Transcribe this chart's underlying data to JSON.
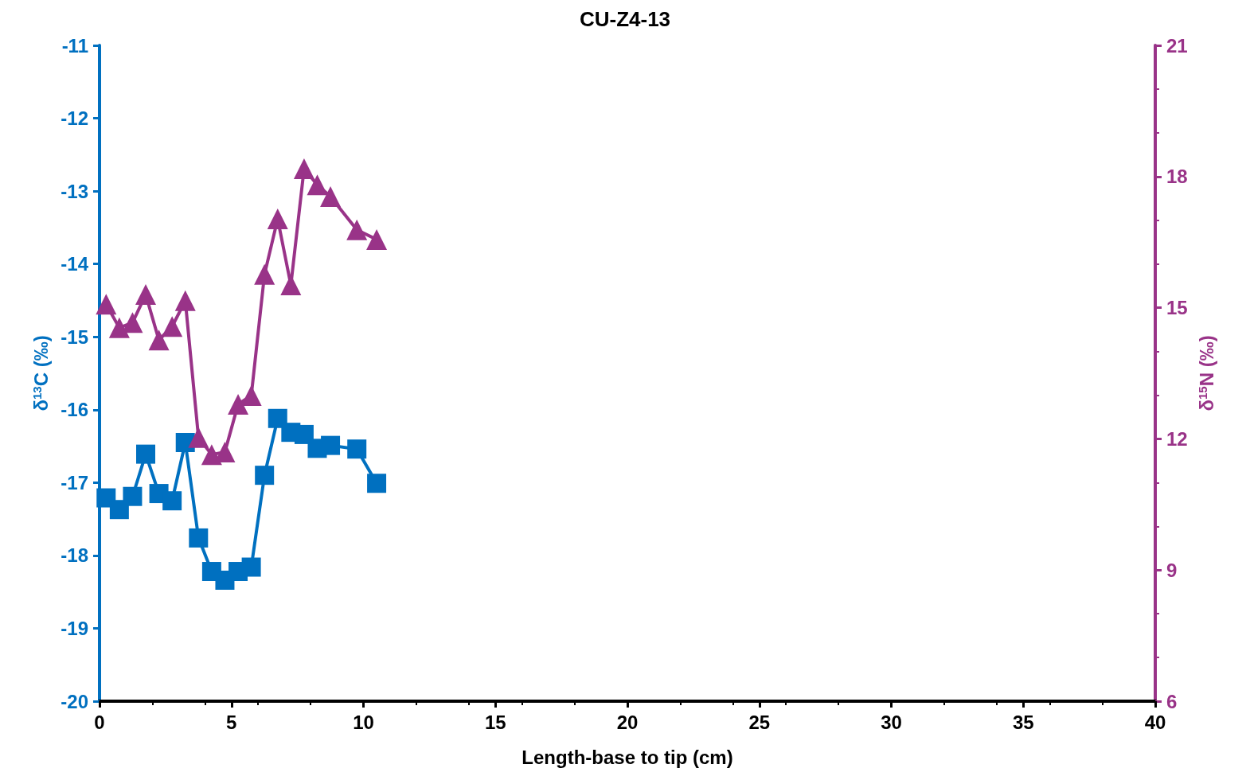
{
  "chart_data": {
    "type": "line",
    "title": "CU-Z4-13",
    "xlabel": "Length-base to tip (cm)",
    "ylabel": "δ$^{13}$C (‰)",
    "y2label": "δ$^{15}$N (‰)",
    "x": [
      0.25,
      0.75,
      1.25,
      1.75,
      2.25,
      2.75,
      3.25,
      3.75,
      4.25,
      4.75,
      5.25,
      5.75,
      6.25,
      6.75,
      7.25,
      7.75,
      8.25,
      8.75,
      9.75,
      10.5
    ],
    "series": [
      {
        "color": "#0070c0",
        "marker": "square",
        "values": [
          -17.21,
          -17.37,
          -17.19,
          -16.61,
          -17.15,
          -17.25,
          -16.45,
          -17.76,
          -18.22,
          -18.34,
          -18.22,
          -18.16,
          -16.9,
          -16.12,
          -16.31,
          -16.34,
          -16.53,
          -16.49,
          -16.54,
          -17.01
        ]
      },
      {
        "color": "#993388",
        "marker": "triangle",
        "axis": "y2",
        "values": [
          15.08,
          14.54,
          14.66,
          15.3,
          14.26,
          14.57,
          15.16,
          12.03,
          11.64,
          11.7,
          12.79,
          12.99,
          15.76,
          17.03,
          15.52,
          18.18,
          17.81,
          17.54,
          16.78,
          16.56
        ]
      }
    ],
    "xlim": [
      0,
      40
    ],
    "xticks": [
      0,
      5,
      10,
      15,
      20,
      25,
      30,
      35,
      40
    ],
    "ylim": [
      -20,
      -11
    ],
    "yticks": [
      -20,
      -19,
      -18,
      -17,
      -16,
      -15,
      -14,
      -13,
      -12,
      -11
    ],
    "y2lim": [
      6,
      21
    ],
    "y2ticks": [
      6,
      9,
      12,
      15,
      18,
      21
    ],
    "grid": false,
    "line_style": "solid"
  }
}
